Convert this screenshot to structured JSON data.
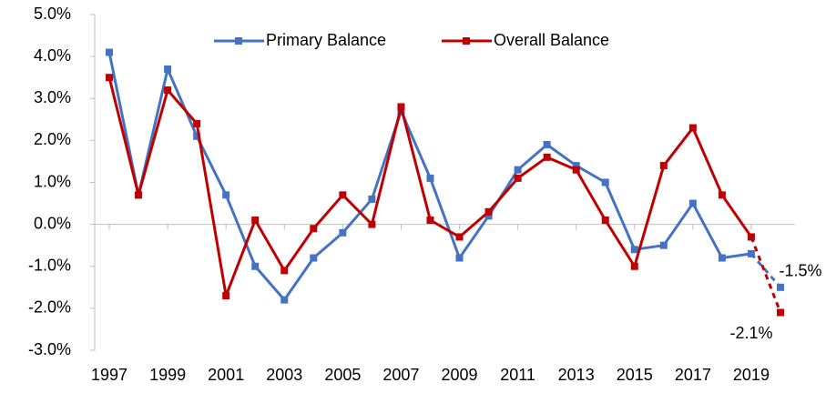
{
  "chart_data": {
    "type": "line",
    "x": [
      1997,
      1998,
      1999,
      2000,
      2001,
      2002,
      2003,
      2004,
      2005,
      2006,
      2007,
      2008,
      2009,
      2010,
      2011,
      2012,
      2013,
      2014,
      2015,
      2016,
      2017,
      2018,
      2019,
      2020
    ],
    "xlim": [
      1996.5,
      2020.5
    ],
    "xticks": [
      1997,
      1999,
      2001,
      2003,
      2005,
      2007,
      2009,
      2011,
      2013,
      2015,
      2017,
      2019
    ],
    "ylim": [
      -3,
      5
    ],
    "yticks": [
      {
        "value": -3,
        "label": "-3.0%"
      },
      {
        "value": -2,
        "label": "-2.0%"
      },
      {
        "value": -1,
        "label": "-1.0%"
      },
      {
        "value": 0,
        "label": "0.0%"
      },
      {
        "value": 1,
        "label": "1.0%"
      },
      {
        "value": 2,
        "label": "2.0%"
      },
      {
        "value": 3,
        "label": "3.0%"
      },
      {
        "value": 4,
        "label": "4.0%"
      },
      {
        "value": 5,
        "label": "5.0%"
      }
    ],
    "grid": false,
    "legend": "top",
    "dashed_from": 2019,
    "series": [
      {
        "name": "Primary Balance",
        "color": "#4472c4",
        "values": [
          4.1,
          0.7,
          3.7,
          2.1,
          0.7,
          -1.0,
          -1.8,
          -0.8,
          -0.2,
          0.6,
          2.7,
          1.1,
          -0.8,
          0.2,
          1.3,
          1.9,
          1.4,
          1.0,
          -0.6,
          -0.5,
          0.5,
          -0.8,
          -0.7,
          -1.5
        ],
        "value_labels": [
          null,
          null,
          null,
          null,
          null,
          null,
          null,
          null,
          null,
          null,
          null,
          null,
          null,
          null,
          null,
          null,
          null,
          null,
          null,
          null,
          null,
          null,
          null,
          "-1.5%"
        ]
      },
      {
        "name": "Overall Balance",
        "color": "#c00000",
        "values": [
          3.5,
          0.7,
          3.2,
          2.4,
          -1.7,
          0.1,
          -1.1,
          -0.1,
          0.7,
          0.0,
          2.8,
          0.1,
          -0.3,
          0.3,
          1.1,
          1.6,
          1.3,
          0.1,
          -1.0,
          1.4,
          2.3,
          0.7,
          -0.3,
          -2.1
        ],
        "value_labels": [
          null,
          null,
          null,
          null,
          null,
          null,
          null,
          null,
          null,
          null,
          null,
          null,
          null,
          null,
          null,
          null,
          null,
          null,
          null,
          null,
          null,
          null,
          null,
          "-2.1%"
        ]
      }
    ]
  }
}
